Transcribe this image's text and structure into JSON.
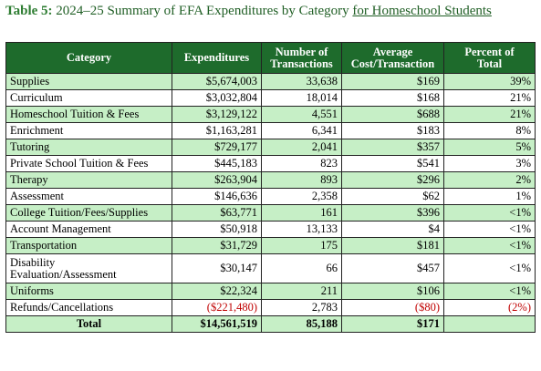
{
  "caption": {
    "label": "Table 5:",
    "title": "2024–25 Summary of EFA Expenditures by Category",
    "underlined": "for Homeschool Students"
  },
  "headers": {
    "category": "Category",
    "expenditures": "Expenditures",
    "transactions_line1": "Number of",
    "transactions_line2": "Transactions",
    "avg_line1": "Average",
    "avg_line2": "Cost/Transaction",
    "pct_line1": "Percent of",
    "pct_line2": "Total"
  },
  "rows": [
    {
      "category": "Supplies",
      "expenditures": "$5,674,003",
      "transactions": "33,638",
      "avg_cost": "$169",
      "percent": "39%"
    },
    {
      "category": "Curriculum",
      "expenditures": "$3,032,804",
      "transactions": "18,014",
      "avg_cost": "$168",
      "percent": "21%"
    },
    {
      "category": "Homeschool Tuition & Fees",
      "expenditures": "$3,129,122",
      "transactions": "4,551",
      "avg_cost": "$688",
      "percent": "21%"
    },
    {
      "category": "Enrichment",
      "expenditures": "$1,163,281",
      "transactions": "6,341",
      "avg_cost": "$183",
      "percent": "8%"
    },
    {
      "category": "Tutoring",
      "expenditures": "$729,177",
      "transactions": "2,041",
      "avg_cost": "$357",
      "percent": "5%"
    },
    {
      "category": "Private School Tuition & Fees",
      "expenditures": "$445,183",
      "transactions": "823",
      "avg_cost": "$541",
      "percent": "3%"
    },
    {
      "category": "Therapy",
      "expenditures": "$263,904",
      "transactions": "893",
      "avg_cost": "$296",
      "percent": "2%"
    },
    {
      "category": "Assessment",
      "expenditures": "$146,636",
      "transactions": "2,358",
      "avg_cost": "$62",
      "percent": "1%"
    },
    {
      "category": "College Tuition/Fees/Supplies",
      "expenditures": "$63,771",
      "transactions": "161",
      "avg_cost": "$396",
      "percent": "<1%"
    },
    {
      "category": "Account Management",
      "expenditures": "$50,918",
      "transactions": "13,133",
      "avg_cost": "$4",
      "percent": "<1%"
    },
    {
      "category": "Transportation",
      "expenditures": "$31,729",
      "transactions": "175",
      "avg_cost": "$181",
      "percent": "<1%"
    },
    {
      "category_line1": "Disability",
      "category_line2": "Evaluation/Assessment",
      "expenditures": "$30,147",
      "transactions": "66",
      "avg_cost": "$457",
      "percent": "<1%"
    },
    {
      "category": "Uniforms",
      "expenditures": "$22,324",
      "transactions": "211",
      "avg_cost": "$106",
      "percent": "<1%"
    },
    {
      "category": "Refunds/Cancellations",
      "expenditures": "($221,480)",
      "transactions": "2,783",
      "avg_cost": "($80)",
      "percent": "(2%)"
    }
  ],
  "total": {
    "label": "Total",
    "expenditures": "$14,561,519",
    "transactions": "85,188",
    "avg_cost": "$171",
    "percent": ""
  },
  "colors": {
    "header_bg": "#1e6b2c",
    "band_bg": "#c6efc6",
    "negative": "#c00000",
    "caption_label": "#2e7d32"
  }
}
